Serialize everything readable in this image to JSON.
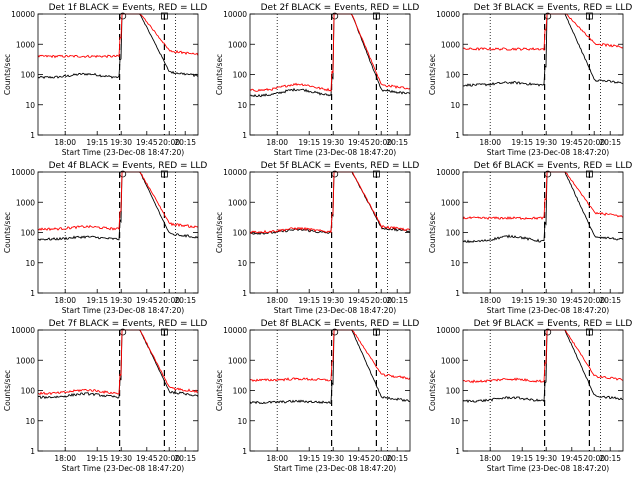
{
  "chart_data": [
    {
      "type": "line",
      "title": "Det 1f BLACK = Events, RED = LLD",
      "xlabel": "Start Time (23-Dec-08 18:47:20)",
      "ylabel": "Counts/sec",
      "yscale": "log",
      "ylim": [
        1,
        10000
      ],
      "xticks": [
        "18:00",
        "19:15",
        "19:30",
        "19:45",
        "20:00",
        "20:15"
      ],
      "yticks": [
        "1",
        "10",
        "100",
        "1000",
        "10000"
      ],
      "series": [
        {
          "name": "Events",
          "color": "#000000",
          "baseline": 80,
          "bump": [
            0.1,
            0.3,
            1.3
          ],
          "peak": true
        },
        {
          "name": "LLD",
          "color": "#ff0000",
          "baseline": 400,
          "bump": [
            0.1,
            0.3,
            1.0
          ],
          "peak": true
        }
      ]
    },
    {
      "type": "line",
      "title": "Det 2f BLACK = Events, RED = LLD",
      "xlabel": "Start Time (23-Dec-08 18:47:20)",
      "ylabel": "Counts/sec",
      "yscale": "log",
      "ylim": [
        1,
        10000
      ],
      "xticks": [
        "18:00",
        "19:15",
        "19:30",
        "19:45",
        "20:00",
        "20:15"
      ],
      "yticks": [
        "1",
        "10",
        "100",
        "1000",
        "10000"
      ],
      "series": [
        {
          "name": "Events",
          "color": "#000000",
          "baseline": 20,
          "bump": [
            0.05,
            0.3,
            1.6
          ],
          "peak": true
        },
        {
          "name": "LLD",
          "color": "#ff0000",
          "baseline": 30,
          "bump": [
            0.05,
            0.3,
            1.6
          ],
          "peak": true
        }
      ]
    },
    {
      "type": "line",
      "title": "Det 3f BLACK = Events, RED = LLD",
      "xlabel": "Start Time (23-Dec-08 18:47:20)",
      "ylabel": "Counts/sec",
      "yscale": "log",
      "ylim": [
        1,
        10000
      ],
      "xticks": [
        "18:00",
        "19:15",
        "19:30",
        "19:45",
        "20:00",
        "20:15"
      ],
      "yticks": [
        "1",
        "10",
        "100",
        "1000",
        "10000"
      ],
      "series": [
        {
          "name": "Events",
          "color": "#000000",
          "baseline": 45,
          "bump": [
            0.1,
            0.3,
            1.2
          ],
          "peak": true
        },
        {
          "name": "LLD",
          "color": "#ff0000",
          "baseline": 700,
          "bump": [
            0.1,
            0.3,
            1.0
          ],
          "peak": true
        }
      ]
    },
    {
      "type": "line",
      "title": "Det 4f BLACK = Events, RED = LLD",
      "xlabel": "Start Time (23-Dec-08 18:47:20)",
      "ylabel": "Counts/sec",
      "yscale": "log",
      "ylim": [
        1,
        10000
      ],
      "xticks": [
        "18:00",
        "19:15",
        "19:30",
        "19:45",
        "20:00",
        "20:15"
      ],
      "yticks": [
        "1",
        "10",
        "100",
        "1000",
        "10000"
      ],
      "series": [
        {
          "name": "Events",
          "color": "#000000",
          "baseline": 60,
          "bump": [
            0.1,
            0.3,
            1.2
          ],
          "peak": true
        },
        {
          "name": "LLD",
          "color": "#ff0000",
          "baseline": 130,
          "bump": [
            0.1,
            0.3,
            1.2
          ],
          "peak": true
        }
      ]
    },
    {
      "type": "line",
      "title": "Det 5f BLACK = Events, RED = LLD",
      "xlabel": "Start Time (23-Dec-08 18:47:20)",
      "ylabel": "Counts/sec",
      "yscale": "log",
      "ylim": [
        1,
        10000
      ],
      "xticks": [
        "18:00",
        "19:15",
        "19:30",
        "19:45",
        "20:00",
        "20:15"
      ],
      "yticks": [
        "1",
        "10",
        "100",
        "1000",
        "10000"
      ],
      "series": [
        {
          "name": "Events",
          "color": "#000000",
          "baseline": 95,
          "bump": [
            0.1,
            0.3,
            1.3
          ],
          "peak": true
        },
        {
          "name": "LLD",
          "color": "#ff0000",
          "baseline": 105,
          "bump": [
            0.1,
            0.3,
            1.3
          ],
          "peak": true
        }
      ]
    },
    {
      "type": "line",
      "title": "Det 6f BLACK = Events, RED = LLD",
      "xlabel": "Start Time (23-Dec-08 18:47:20)",
      "ylabel": "Counts/sec",
      "yscale": "log",
      "ylim": [
        1,
        10000
      ],
      "xticks": [
        "18:00",
        "19:15",
        "19:30",
        "19:45",
        "20:00",
        "20:15"
      ],
      "yticks": [
        "1",
        "10",
        "100",
        "1000",
        "10000"
      ],
      "series": [
        {
          "name": "Events",
          "color": "#000000",
          "baseline": 50,
          "bump": [
            0.1,
            0.3,
            1.5
          ],
          "peak": true
        },
        {
          "name": "LLD",
          "color": "#ff0000",
          "baseline": 300,
          "bump": [
            0.1,
            0.3,
            1.0
          ],
          "peak": true
        }
      ]
    },
    {
      "type": "line",
      "title": "Det 7f BLACK = Events, RED = LLD",
      "xlabel": "Start Time (23-Dec-08 18:47:20)",
      "ylabel": "Counts/sec",
      "yscale": "log",
      "ylim": [
        1,
        10000
      ],
      "xticks": [
        "18:00",
        "19:15",
        "19:30",
        "19:45",
        "20:00",
        "20:15"
      ],
      "yticks": [
        "1",
        "10",
        "100",
        "1000",
        "10000"
      ],
      "series": [
        {
          "name": "Events",
          "color": "#000000",
          "baseline": 60,
          "bump": [
            0.1,
            0.3,
            1.3
          ],
          "peak": true
        },
        {
          "name": "LLD",
          "color": "#ff0000",
          "baseline": 80,
          "bump": [
            0.1,
            0.3,
            1.3
          ],
          "peak": true
        }
      ]
    },
    {
      "type": "line",
      "title": "Det 8f BLACK = Events, RED = LLD",
      "xlabel": "Start Time (23-Dec-08 18:47:20)",
      "ylabel": "Counts/sec",
      "yscale": "log",
      "ylim": [
        1,
        10000
      ],
      "xticks": [
        "18:00",
        "19:15",
        "19:30",
        "19:45",
        "20:00",
        "20:15"
      ],
      "yticks": [
        "1",
        "10",
        "100",
        "1000",
        "10000"
      ],
      "series": [
        {
          "name": "Events",
          "color": "#000000",
          "baseline": 40,
          "bump": [
            0.1,
            0.3,
            1.1
          ],
          "peak": true
        },
        {
          "name": "LLD",
          "color": "#ff0000",
          "baseline": 220,
          "bump": [
            0.1,
            0.3,
            1.1
          ],
          "peak": true
        }
      ]
    },
    {
      "type": "line",
      "title": "Det 9f BLACK = Events, RED = LLD",
      "xlabel": "Start Time (23-Dec-08 18:47:20)",
      "ylabel": "Counts/sec",
      "yscale": "log",
      "ylim": [
        1,
        10000
      ],
      "xticks": [
        "18:00",
        "19:15",
        "19:30",
        "19:45",
        "20:00",
        "20:15"
      ],
      "yticks": [
        "1",
        "10",
        "100",
        "1000",
        "10000"
      ],
      "series": [
        {
          "name": "Events",
          "color": "#000000",
          "baseline": 45,
          "bump": [
            0.1,
            0.3,
            1.3
          ],
          "peak": true
        },
        {
          "name": "LLD",
          "color": "#ff0000",
          "baseline": 200,
          "bump": [
            0.1,
            0.3,
            1.2
          ],
          "peak": true
        }
      ]
    }
  ]
}
